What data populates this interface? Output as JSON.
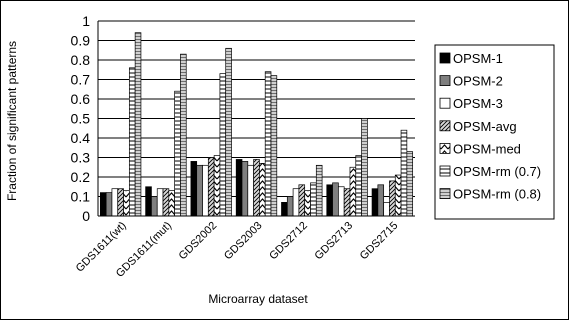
{
  "chart_data": {
    "type": "bar",
    "xlabel": "Microarray dataset",
    "ylabel": "Fraction of significant patterns",
    "ylim": [
      0,
      1
    ],
    "yticks": [
      "0",
      "0.1",
      "0.2",
      "0.3",
      "0.4",
      "0.5",
      "0.6",
      "0.7",
      "0.8",
      "0.9",
      "1"
    ],
    "grid": true,
    "legend_position": "right",
    "categories": [
      "GDS1611(wt)",
      "GDS1611(mut)",
      "GDS2002",
      "GDS2003",
      "GDS2712",
      "GDS2713",
      "GDS2715"
    ],
    "series": [
      {
        "name": "OPSM-1",
        "pattern": "solid-black",
        "values": [
          0.12,
          0.15,
          0.28,
          0.29,
          0.07,
          0.16,
          0.14
        ]
      },
      {
        "name": "OPSM-2",
        "pattern": "solid-gray",
        "values": [
          0.12,
          0.1,
          0.26,
          0.28,
          0.1,
          0.17,
          0.16
        ]
      },
      {
        "name": "OPSM-3",
        "pattern": "white",
        "values": [
          0.14,
          0.14,
          0.26,
          0.26,
          0.14,
          0.15,
          0.07
        ]
      },
      {
        "name": "OPSM-avg",
        "pattern": "diagonal-hatch",
        "values": [
          0.14,
          0.14,
          0.3,
          0.29,
          0.16,
          0.14,
          0.18
        ]
      },
      {
        "name": "OPSM-med",
        "pattern": "zigzag",
        "values": [
          0.13,
          0.13,
          0.31,
          0.27,
          0.13,
          0.25,
          0.21
        ]
      },
      {
        "name": "OPSM-rm (0.7)",
        "pattern": "horizontal-stripes",
        "values": [
          0.76,
          0.64,
          0.73,
          0.74,
          0.17,
          0.31,
          0.44
        ]
      },
      {
        "name": "OPSM-rm (0.8)",
        "pattern": "light-gray-stripes",
        "values": [
          0.94,
          0.83,
          0.86,
          0.72,
          0.26,
          0.5,
          0.33
        ]
      }
    ]
  }
}
